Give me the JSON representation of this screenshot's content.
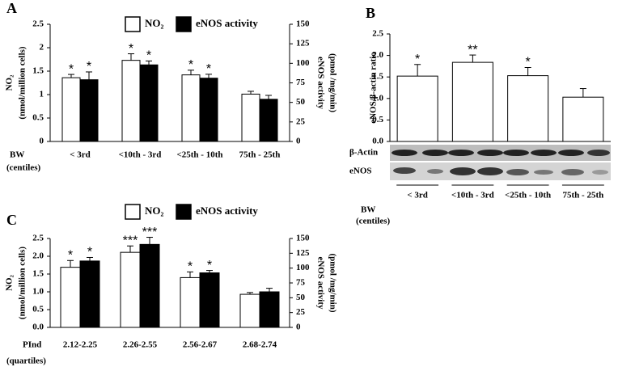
{
  "chart_data": [
    {
      "panel": "A",
      "type": "bar",
      "categories": [
        "< 3rd",
        "<10th - 3rd",
        "<25th - 10th",
        "75th - 25th"
      ],
      "xlabel": [
        "BW",
        "(centiles)"
      ],
      "ylabel": [
        "NO₂",
        "(nmol/million cells)"
      ],
      "y2label": [
        "eNOS  activity",
        "(pmol /mg/min)"
      ],
      "ylim": [
        0,
        2.5
      ],
      "yticks": [
        0,
        0.5,
        1,
        1.5,
        2,
        2.5
      ],
      "y2lim": [
        0,
        150
      ],
      "y2ticks": [
        0,
        25,
        50,
        75,
        100,
        125,
        150
      ],
      "series": [
        {
          "name": "NO₂",
          "color": "#ffffff",
          "values": [
            1.36,
            1.73,
            1.42,
            1.01
          ],
          "errors": [
            0.07,
            0.14,
            0.1,
            0.06
          ],
          "significance": [
            "*",
            "*",
            "*",
            null
          ]
        },
        {
          "name": "eNOS activity",
          "color": "#000000",
          "axis": "y2",
          "values": [
            79,
            98,
            81,
            54
          ],
          "errors": [
            10,
            5,
            5,
            5
          ],
          "significance": [
            "*",
            "*",
            "*",
            null
          ]
        }
      ]
    },
    {
      "panel": "B",
      "type": "bar",
      "categories": [
        "< 3rd",
        "<10th - 3rd",
        "<25th - 10th",
        "75th - 25th"
      ],
      "xlabel": [
        "BW",
        "(centiles)"
      ],
      "ylabel": [
        "eNOS/β-actin ratio"
      ],
      "blot_labels": [
        "β-Actin",
        "eNOS"
      ],
      "ylim": [
        0,
        2.5
      ],
      "yticks": [
        {
          "value": 0,
          "label": "0.0"
        },
        {
          "value": 0.5,
          "label": "0.5"
        },
        {
          "value": 1,
          "label": "1.0"
        },
        {
          "value": 1.5,
          "label": "1.5"
        },
        {
          "value": 2,
          "label": "2.0"
        },
        {
          "value": 2.5,
          "label": "2.5"
        }
      ],
      "series": [
        {
          "color": "#ffffff",
          "values": [
            1.52,
            1.84,
            1.53,
            1.03
          ],
          "errors": [
            0.27,
            0.17,
            0.19,
            0.2
          ],
          "significance": [
            "*",
            "**",
            "*",
            null
          ]
        }
      ]
    },
    {
      "panel": "C",
      "type": "bar",
      "categories": [
        "2.12-2.25",
        "2.26-2.55",
        "2.56-2.67",
        "2.68-2.74"
      ],
      "xlabel": [
        "PInd",
        "(quartiles)"
      ],
      "ylabel": [
        "NO₂",
        "(nmol/million cells)"
      ],
      "y2label": [
        "eNOS  activity",
        "(pmol /mg/min)"
      ],
      "ylim": [
        0,
        2.5
      ],
      "yticks": [
        {
          "value": 0,
          "label": "0.0"
        },
        {
          "value": 0.5,
          "label": "0.5"
        },
        {
          "value": 1,
          "label": "1.0"
        },
        {
          "value": 1.5,
          "label": "1.5"
        },
        {
          "value": 2,
          "label": "2.0"
        },
        {
          "value": 2.5,
          "label": "2.5"
        }
      ],
      "y2lim": [
        0,
        150
      ],
      "y2ticks": [
        0,
        25,
        50,
        75,
        100,
        125,
        150
      ],
      "series": [
        {
          "name": "NO₂",
          "color": "#ffffff",
          "values": [
            1.69,
            2.11,
            1.4,
            0.93
          ],
          "errors": [
            0.19,
            0.18,
            0.16,
            0.05
          ],
          "significance": [
            "*",
            "***",
            "*",
            null
          ]
        },
        {
          "name": "eNOS activity",
          "color": "#000000",
          "axis": "y2",
          "values": [
            112,
            140,
            92,
            60
          ],
          "errors": [
            6,
            12,
            4,
            6
          ],
          "significance": [
            "*",
            "***",
            "*",
            null
          ]
        }
      ]
    }
  ]
}
